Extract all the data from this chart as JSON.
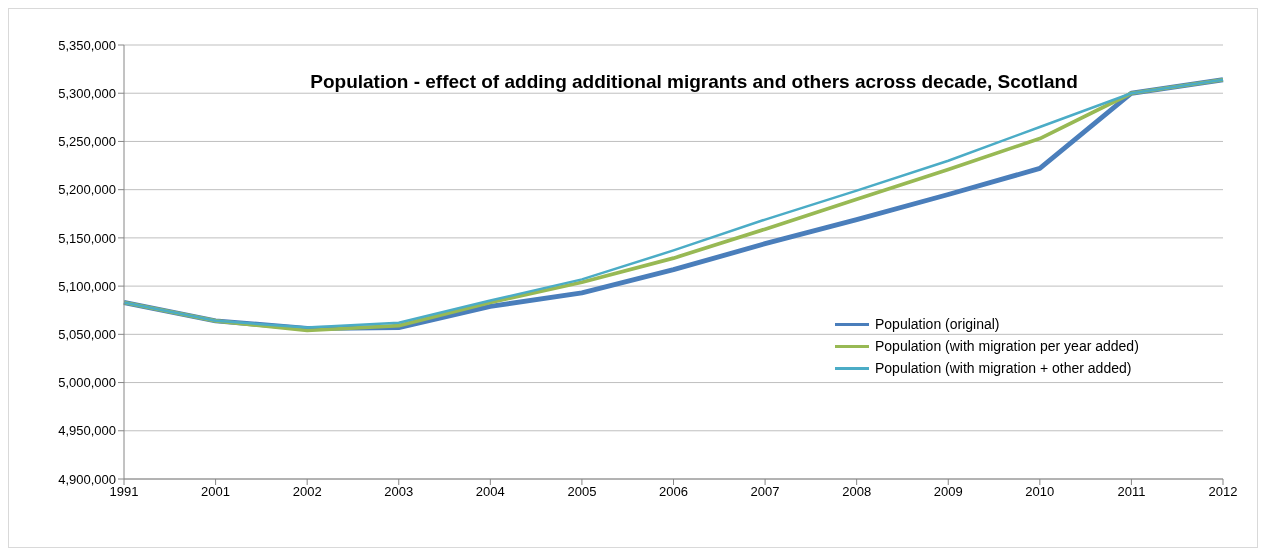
{
  "chart_data": {
    "type": "line",
    "title": "Population - effect of adding additional migrants and others across decade, Scotland",
    "categories": [
      "1991",
      "2001",
      "2002",
      "2003",
      "2004",
      "2005",
      "2006",
      "2007",
      "2008",
      "2009",
      "2010",
      "2011",
      "2012"
    ],
    "series": [
      {
        "name": "Population (original)",
        "color": "#4a7ebb",
        "values": [
          5083000,
          5064000,
          5056000,
          5057000,
          5079000,
          5093000,
          5117000,
          5144000,
          5169000,
          5195000,
          5222000,
          5300000,
          5314000
        ]
      },
      {
        "name": "Population (with migration per year added)",
        "color": "#98b954",
        "values": [
          5083000,
          5064000,
          5054000,
          5059000,
          5083000,
          5104000,
          5129000,
          5159000,
          5190000,
          5221000,
          5253000,
          5300000,
          5314000
        ]
      },
      {
        "name": "Population (with migration + other added)",
        "color": "#4bacc6",
        "values": [
          5083000,
          5064000,
          5057000,
          5062000,
          5085000,
          5107000,
          5137000,
          5169000,
          5199000,
          5230000,
          5265000,
          5300000,
          5314000
        ]
      }
    ],
    "ylim": [
      4900000,
      5350000
    ],
    "yticks": [
      {
        "value": 4900000,
        "label": "4,900,000"
      },
      {
        "value": 4950000,
        "label": "4,950,000"
      },
      {
        "value": 5000000,
        "label": "5,000,000"
      },
      {
        "value": 5050000,
        "label": "5,050,000"
      },
      {
        "value": 5100000,
        "label": "5,100,000"
      },
      {
        "value": 5150000,
        "label": "5,150,000"
      },
      {
        "value": 5200000,
        "label": "5,200,000"
      },
      {
        "value": 5250000,
        "label": "5,250,000"
      },
      {
        "value": 5300000,
        "label": "5,300,000"
      },
      {
        "value": 5350000,
        "label": "5,350,000"
      }
    ],
    "grid": "y",
    "legend": "right",
    "marker": "none",
    "line_style": "solid"
  }
}
